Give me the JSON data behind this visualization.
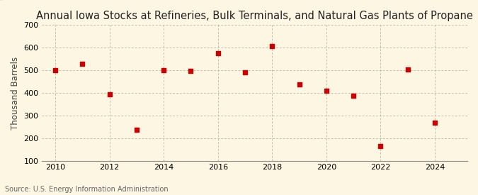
{
  "title": "Annual Iowa Stocks at Refineries, Bulk Terminals, and Natural Gas Plants of Propane",
  "ylabel": "Thousand Barrels",
  "source": "Source: U.S. Energy Information Administration",
  "background_color": "#fdf6e3",
  "plot_bg_color": "#fdf6e3",
  "marker_color": "#cc0000",
  "years": [
    2010,
    2011,
    2012,
    2013,
    2014,
    2015,
    2016,
    2017,
    2018,
    2019,
    2020,
    2021,
    2022,
    2023,
    2024
  ],
  "values": [
    500,
    527,
    395,
    237,
    500,
    497,
    577,
    490,
    608,
    437,
    408,
    388,
    165,
    504,
    268
  ],
  "ylim": [
    100,
    700
  ],
  "xlim": [
    2009.5,
    2025.2
  ],
  "yticks": [
    100,
    200,
    300,
    400,
    500,
    600,
    700
  ],
  "xticks": [
    2010,
    2012,
    2014,
    2016,
    2018,
    2020,
    2022,
    2024
  ],
  "title_fontsize": 10.5,
  "label_fontsize": 8.5,
  "tick_fontsize": 8,
  "source_fontsize": 7
}
